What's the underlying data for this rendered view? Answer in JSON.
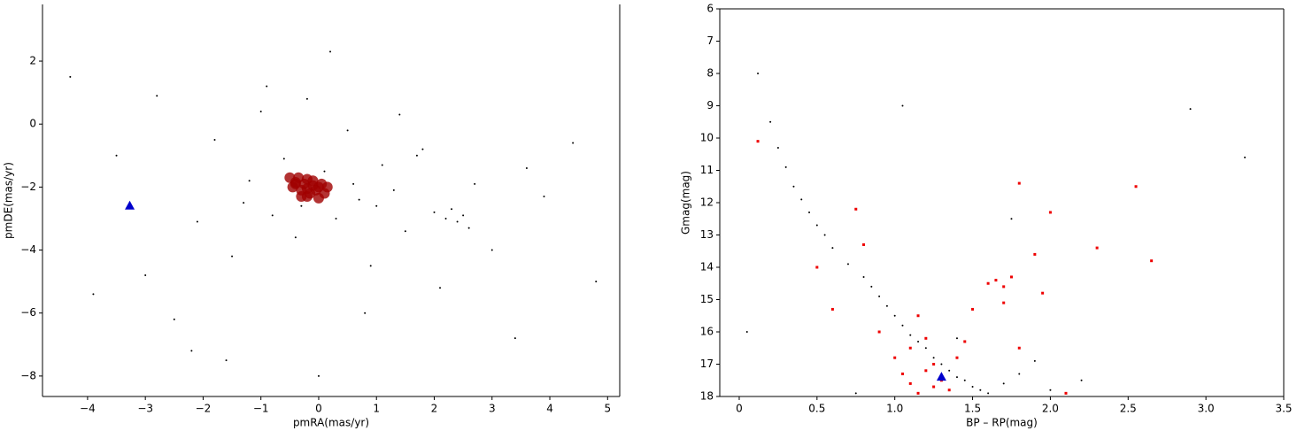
{
  "chart_data": [
    {
      "type": "scatter",
      "xlabel": "pmRA(mas/yr)",
      "ylabel": "pmDE(mas/yr)",
      "xlim": [
        -4.78,
        5.21
      ],
      "ylim": [
        -8.65,
        3.8
      ],
      "xticks": [
        {
          "value": -4,
          "label": "−4"
        },
        {
          "value": -3,
          "label": "−3"
        },
        {
          "value": -2,
          "label": "−2"
        },
        {
          "value": -1,
          "label": "−1"
        },
        0,
        1,
        2,
        3,
        4,
        5
      ],
      "yticks": [
        {
          "value": -8,
          "label": "−8"
        },
        {
          "value": -6,
          "label": "−6"
        },
        {
          "value": -4,
          "label": "−4"
        },
        {
          "value": -2,
          "label": "−2"
        },
        0,
        2
      ],
      "series": [
        {
          "color": "#000000",
          "marker": "dot",
          "x": [
            -4.3,
            -3.9,
            -3.5,
            -2.8,
            -2.5,
            -2.1,
            -1.8,
            -1.5,
            -1.2,
            -1.0,
            -0.8,
            -0.6,
            -0.4,
            -0.2,
            0.1,
            0.3,
            0.5,
            0.7,
            0.9,
            1.1,
            1.3,
            1.5,
            1.8,
            2.0,
            2.2,
            2.3,
            2.4,
            2.5,
            2.7,
            3.0,
            3.4,
            3.9,
            4.4,
            4.8,
            -1.6,
            -0.9,
            0.2,
            0.8,
            1.4,
            2.1,
            -0.3,
            0.6,
            1.0,
            -1.3,
            0.0,
            2.6,
            -2.2,
            3.6,
            -3.0,
            1.7
          ],
          "y": [
            1.5,
            -5.4,
            -1.0,
            0.9,
            -6.2,
            -3.1,
            -0.5,
            -4.2,
            -1.8,
            0.4,
            -2.9,
            -1.1,
            -3.6,
            0.8,
            -1.5,
            -3.0,
            -0.2,
            -2.4,
            -4.5,
            -1.3,
            -2.1,
            -3.4,
            -0.8,
            -2.8,
            -3.0,
            -2.7,
            -3.1,
            -2.9,
            -1.9,
            -4.0,
            -6.8,
            -2.3,
            -0.6,
            -5.0,
            -7.5,
            1.2,
            2.3,
            -6.0,
            0.3,
            -5.2,
            -2.6,
            -1.9,
            -2.6,
            -2.5,
            -8.0,
            -3.3,
            -7.2,
            -1.4,
            -4.8,
            -1.0
          ]
        },
        {
          "color": "#a00000",
          "marker": "blob",
          "x": [
            -0.5,
            -0.4,
            -0.3,
            -0.2,
            -0.1,
            0.0,
            0.1,
            0.15,
            -0.45,
            -0.35,
            -0.25,
            -0.15,
            -0.05,
            0.05,
            -0.3,
            -0.2,
            -0.1,
            0.0,
            -0.4,
            -0.2
          ],
          "y": [
            -1.7,
            -1.9,
            -2.1,
            -2.3,
            -1.8,
            -2.0,
            -2.2,
            -2.0,
            -2.0,
            -1.7,
            -1.9,
            -2.2,
            -2.1,
            -1.9,
            -2.3,
            -1.75,
            -1.95,
            -2.35,
            -1.85,
            -2.05
          ]
        },
        {
          "color": "#0000cc",
          "marker": "triangle",
          "x": [
            -3.27
          ],
          "y": [
            -2.6
          ]
        }
      ]
    },
    {
      "type": "scatter",
      "xlabel": "BP – RP(mag)",
      "ylabel": "Gmag(mag)",
      "xlim": [
        -0.125,
        3.5
      ],
      "ylim": [
        18,
        6
      ],
      "xticks": [
        0,
        0.5,
        {
          "value": 1,
          "label": "1.0"
        },
        1.5,
        {
          "value": 2,
          "label": "2.0"
        },
        2.5,
        {
          "value": 3,
          "label": "3.0"
        },
        3.5
      ],
      "yticks": [
        6,
        7,
        8,
        9,
        10,
        11,
        12,
        13,
        14,
        15,
        16,
        17,
        18
      ],
      "series": [
        {
          "color": "#000000",
          "marker": "dot",
          "x": [
            0.12,
            0.2,
            0.25,
            0.3,
            0.35,
            0.4,
            0.45,
            0.5,
            0.55,
            0.6,
            0.7,
            0.8,
            0.85,
            0.9,
            0.95,
            1.0,
            1.05,
            1.1,
            1.15,
            1.2,
            1.25,
            1.3,
            1.35,
            1.4,
            1.45,
            1.5,
            1.55,
            1.6,
            1.7,
            1.8,
            1.9,
            2.0,
            2.2,
            0.05,
            1.05,
            2.9,
            3.25,
            1.75,
            0.75,
            1.4
          ],
          "y": [
            8.0,
            9.5,
            10.3,
            10.9,
            11.5,
            11.9,
            12.3,
            12.7,
            13.0,
            13.4,
            13.9,
            14.3,
            14.6,
            14.9,
            15.2,
            15.5,
            15.8,
            16.1,
            16.3,
            16.5,
            16.8,
            17.0,
            17.2,
            17.4,
            17.5,
            17.7,
            17.8,
            17.9,
            17.6,
            17.3,
            16.9,
            17.8,
            17.5,
            16.0,
            9.0,
            9.1,
            10.6,
            12.5,
            17.9,
            16.2
          ]
        },
        {
          "color": "#ee0000",
          "marker": "square",
          "x": [
            0.12,
            0.5,
            0.6,
            0.75,
            0.8,
            0.9,
            1.0,
            1.05,
            1.1,
            1.1,
            1.15,
            1.2,
            1.2,
            1.25,
            1.3,
            1.35,
            1.4,
            1.5,
            1.6,
            1.65,
            1.7,
            1.75,
            1.8,
            1.7,
            1.9,
            2.0,
            1.95,
            2.3,
            2.55,
            2.65,
            1.8,
            1.25,
            1.15,
            2.1,
            1.45
          ],
          "y": [
            10.1,
            14.0,
            15.3,
            12.2,
            13.3,
            16.0,
            16.8,
            17.3,
            17.6,
            16.5,
            17.9,
            17.2,
            16.2,
            17.7,
            17.5,
            17.8,
            16.8,
            15.3,
            14.5,
            14.4,
            14.6,
            14.3,
            11.4,
            15.1,
            13.6,
            12.3,
            14.8,
            13.4,
            11.5,
            13.8,
            16.5,
            17.0,
            15.5,
            17.9,
            16.3
          ]
        },
        {
          "color": "#0000cc",
          "marker": "triangle",
          "x": [
            1.3
          ],
          "y": [
            17.4
          ]
        }
      ]
    }
  ]
}
